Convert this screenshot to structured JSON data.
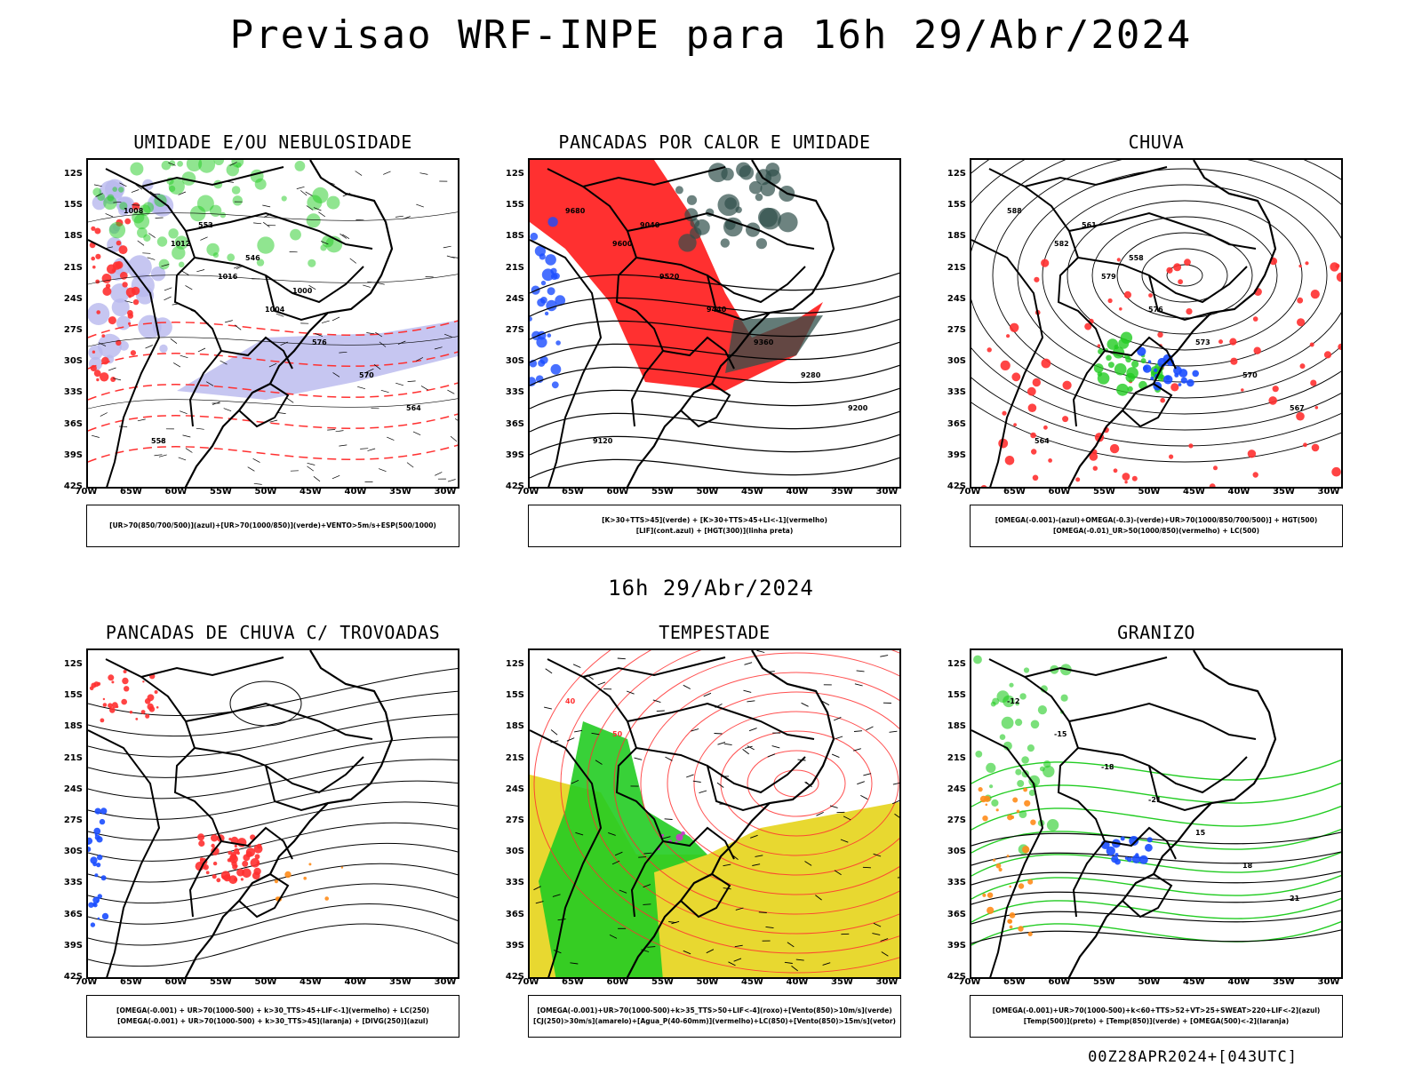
{
  "main_title": "Previsao WRF-INPE  para 16h 29/Abr/2024",
  "mid_title": "16h 29/Abr/2024",
  "footer": "00Z28APR2024+[043UTC]",
  "axes": {
    "lat_labels": [
      "12S",
      "15S",
      "18S",
      "21S",
      "24S",
      "27S",
      "30S",
      "33S",
      "36S",
      "39S",
      "42S"
    ],
    "lon_labels": [
      "70W",
      "65W",
      "60W",
      "55W",
      "50W",
      "45W",
      "40W",
      "35W",
      "30W"
    ]
  },
  "panels": [
    {
      "title": "UMIDADE E/OU NEBULOSIDADE",
      "legend": [
        "[UR>70(850/700/500)](azul)+[UR>70(1000/850)](verde)+VENTO>5m/s+ESP(500/1000)"
      ],
      "contour_labels": [
        "1008",
        "1012",
        "1016",
        "1004",
        "576",
        "570",
        "564",
        "558",
        "552",
        "546",
        "1000"
      ]
    },
    {
      "title": "PANCADAS POR CALOR E UMIDADE",
      "legend": [
        "[K>30+TTS>45](verde) + [K>30+TTS>45+LI<-1](vermelho)",
        "[LIF](cont.azul) + [HGT(300)](linha preta)"
      ],
      "contour_labels": [
        "9680",
        "9600",
        "9520",
        "9440",
        "9360",
        "9280",
        "9200",
        "9120",
        "9040"
      ]
    },
    {
      "title": "CHUVA",
      "legend": [
        "[OMEGA(-0.001)-(azul)+OMEGA(-0.3)-(verde)+UR>70(1000/850/700/500)] + HGT(500)",
        "[OMEGA(-0.01)_UR>50(1000/850)(vermelho) + LC(500)"
      ],
      "contour_labels": [
        "588",
        "582",
        "579",
        "576",
        "573",
        "570",
        "567",
        "564",
        "561",
        "558"
      ]
    },
    {
      "title": "PANCADAS DE CHUVA C/ TROVOADAS",
      "legend": [
        "[OMEGA(-0.001) + UR>70(1000-500) + k>30_TTS>45+LIF<-1](vermelho) + LC(250)",
        "[OMEGA(-0.001) + UR>70(1000-500) + k>30_TTS>45](laranja) + [DIVG(250)](azul)"
      ],
      "contour_labels": []
    },
    {
      "title": "TEMPESTADE",
      "legend": [
        "[OMEGA(-0.001)+UR>70(1000-500)+k>35_TTS>50+LIF<-4](roxo)+[Vento(850)>10m/s](verde)",
        "[CJ(250)>30m/s](amarelo)+[Agua_P(40-60mm)](vermelho)+LC(850)+[Vento(850)>15m/s](vetor)"
      ],
      "contour_labels": [
        "40",
        "50"
      ]
    },
    {
      "title": "GRANIZO",
      "legend": [
        "[OMEGA(-0.001)+UR>70(1000-500)+k<60+TTS>52+VT>25+SWEAT>220+LIF<-2](azul)",
        "[Temp(500)](preto) + [Temp(850)](verde) + [OMEGA(500)<-2](laranja)"
      ],
      "contour_labels": [
        "-12",
        "-15",
        "-18",
        "-21",
        "15",
        "18",
        "21"
      ]
    }
  ],
  "colors": {
    "red": "#ff3030",
    "green": "#22cc22",
    "blue": "#1a4cff",
    "lavender": "#b8b8ee",
    "yellow": "#e8d830",
    "darkteal": "#2f4f4a",
    "orange": "#ff8c1a"
  }
}
